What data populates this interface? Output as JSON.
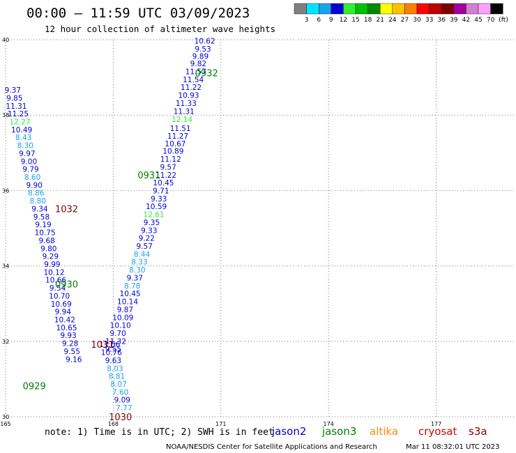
{
  "header": {
    "title": "00:00 – 11:59 UTC 03/09/2023",
    "subtitle": "12 hour collection of altimeter wave heights"
  },
  "footer": {
    "note": "note: 1) Time is in UTC; 2) SWH is in feet",
    "credit": "NOAA/NESDIS Center for Satellite Applications and Research",
    "timestamp": "Mar 11 08:32:01 UTC 2023"
  },
  "colorbar": {
    "unit": "(ft)",
    "bins": [
      {
        "label": "3",
        "color": "#808080"
      },
      {
        "label": "6",
        "color": "#00e5ff"
      },
      {
        "label": "9",
        "color": "#1aa3e8"
      },
      {
        "label": "12",
        "color": "#0000d8"
      },
      {
        "label": "15",
        "color": "#33ee33"
      },
      {
        "label": "18",
        "color": "#00c000"
      },
      {
        "label": "21",
        "color": "#008800"
      },
      {
        "label": "24",
        "color": "#ffff00"
      },
      {
        "label": "27",
        "color": "#ffc000"
      },
      {
        "label": "30",
        "color": "#ff8000"
      },
      {
        "label": "33",
        "color": "#ff0000"
      },
      {
        "label": "36",
        "color": "#c00000"
      },
      {
        "label": "39",
        "color": "#800000"
      },
      {
        "label": "42",
        "color": "#a000a0"
      },
      {
        "label": "45",
        "color": "#d080d0"
      },
      {
        "label": "70",
        "color": "#ffa0ff"
      },
      {
        "label": "",
        "color": "#000000"
      }
    ]
  },
  "legend": {
    "items": [
      {
        "label": "jason2",
        "color": "#0000cc"
      },
      {
        "label": "jason3",
        "color": "#008000"
      },
      {
        "label": "altika",
        "color": "#ff8800"
      },
      {
        "label": "cryosat",
        "color": "#dd0000"
      },
      {
        "label": "s3a",
        "color": "#800000"
      }
    ]
  },
  "chart_data": {
    "type": "scatter",
    "xlim": [
      165,
      180
    ],
    "ylim": [
      30,
      40
    ],
    "x_ticks": [
      "165",
      "168",
      "171",
      "174",
      "177"
    ],
    "y_ticks": [
      "30",
      "32",
      "34",
      "36",
      "38",
      "40"
    ],
    "grid": true,
    "value_colors": {
      "low": "#1aa3e8",
      "mid": "#0000d8",
      "high": "#33ee33"
    },
    "time_color": "#008000",
    "time_color_alt": "#800000",
    "track_labels": [
      {
        "text": "0932",
        "x": 170.6,
        "y": 39.1,
        "alt": false
      },
      {
        "text": "0931",
        "x": 169.0,
        "y": 36.4,
        "alt": false
      },
      {
        "text": "0930",
        "x": 166.7,
        "y": 33.5,
        "alt": false
      },
      {
        "text": "0929",
        "x": 165.8,
        "y": 30.8,
        "alt": false
      },
      {
        "text": "1032",
        "x": 166.7,
        "y": 35.5,
        "alt": true
      },
      {
        "text": "1031",
        "x": 167.7,
        "y": 31.9,
        "alt": true
      },
      {
        "text": "1030",
        "x": 168.2,
        "y": 29.98,
        "alt": true
      }
    ],
    "tracks": [
      {
        "name": "pass 0932-0931",
        "points": [
          {
            "x": 170.55,
            "y": 39.95,
            "v": 10.62
          },
          {
            "x": 170.5,
            "y": 39.74,
            "v": 9.53
          },
          {
            "x": 170.43,
            "y": 39.55,
            "v": 9.89
          },
          {
            "x": 170.37,
            "y": 39.35,
            "v": 9.82
          },
          {
            "x": 170.3,
            "y": 39.14,
            "v": 11.57
          },
          {
            "x": 170.23,
            "y": 38.93,
            "v": 11.54
          },
          {
            "x": 170.17,
            "y": 38.72,
            "v": 11.22
          },
          {
            "x": 170.1,
            "y": 38.51,
            "v": 10.93
          },
          {
            "x": 170.03,
            "y": 38.3,
            "v": 11.33
          },
          {
            "x": 169.97,
            "y": 38.09,
            "v": 11.31
          },
          {
            "x": 169.92,
            "y": 37.87,
            "v": 12.14
          },
          {
            "x": 169.87,
            "y": 37.63,
            "v": 11.51
          },
          {
            "x": 169.8,
            "y": 37.43,
            "v": 11.27
          },
          {
            "x": 169.73,
            "y": 37.23,
            "v": 10.67
          },
          {
            "x": 169.67,
            "y": 37.03,
            "v": 10.89
          },
          {
            "x": 169.6,
            "y": 36.82,
            "v": 11.12
          },
          {
            "x": 169.53,
            "y": 36.61,
            "v": 9.57
          },
          {
            "x": 169.47,
            "y": 36.4,
            "v": 11.22
          },
          {
            "x": 169.4,
            "y": 36.19,
            "v": 10.45
          },
          {
            "x": 169.33,
            "y": 35.98,
            "v": 9.71
          },
          {
            "x": 169.27,
            "y": 35.77,
            "v": 9.33
          },
          {
            "x": 169.2,
            "y": 35.56,
            "v": 10.59
          },
          {
            "x": 169.13,
            "y": 35.35,
            "v": 12.61
          },
          {
            "x": 169.07,
            "y": 35.14,
            "v": 9.35
          },
          {
            "x": 169.0,
            "y": 34.93,
            "v": 9.33
          },
          {
            "x": 168.93,
            "y": 34.72,
            "v": 9.22
          },
          {
            "x": 168.87,
            "y": 34.51,
            "v": 9.57
          },
          {
            "x": 168.8,
            "y": 34.3,
            "v": 8.44
          },
          {
            "x": 168.73,
            "y": 34.09,
            "v": 8.33
          },
          {
            "x": 168.67,
            "y": 33.88,
            "v": 8.3
          },
          {
            "x": 168.6,
            "y": 33.67,
            "v": 9.37
          },
          {
            "x": 168.53,
            "y": 33.46,
            "v": 8.78
          },
          {
            "x": 168.47,
            "y": 33.25,
            "v": 10.45
          },
          {
            "x": 168.4,
            "y": 33.04,
            "v": 10.14
          },
          {
            "x": 168.33,
            "y": 32.83,
            "v": 9.87
          },
          {
            "x": 168.27,
            "y": 32.62,
            "v": 10.09
          },
          {
            "x": 168.2,
            "y": 32.41,
            "v": 10.1
          },
          {
            "x": 168.13,
            "y": 32.2,
            "v": 9.7
          },
          {
            "x": 168.07,
            "y": 31.99,
            "v": 11.32
          },
          {
            "x": 168.0,
            "y": 31.78,
            "v": 9.55
          }
        ]
      },
      {
        "name": "pass 1032-1030",
        "points": [
          {
            "x": 165.2,
            "y": 38.65,
            "v": 9.37
          },
          {
            "x": 165.25,
            "y": 38.44,
            "v": 9.85
          },
          {
            "x": 165.3,
            "y": 38.23,
            "v": 11.31
          },
          {
            "x": 165.35,
            "y": 38.02,
            "v": 11.25
          },
          {
            "x": 165.4,
            "y": 37.81,
            "v": 12.27
          },
          {
            "x": 165.45,
            "y": 37.6,
            "v": 10.49
          },
          {
            "x": 165.5,
            "y": 37.39,
            "v": 8.43
          },
          {
            "x": 165.55,
            "y": 37.18,
            "v": 8.3
          },
          {
            "x": 165.6,
            "y": 36.97,
            "v": 9.97
          },
          {
            "x": 165.65,
            "y": 36.76,
            "v": 9.0
          },
          {
            "x": 165.7,
            "y": 36.55,
            "v": 9.79
          },
          {
            "x": 165.75,
            "y": 36.34,
            "v": 8.6
          },
          {
            "x": 165.8,
            "y": 36.13,
            "v": 9.9
          },
          {
            "x": 165.85,
            "y": 35.92,
            "v": 8.86
          },
          {
            "x": 165.9,
            "y": 35.71,
            "v": 8.8
          },
          {
            "x": 165.95,
            "y": 35.5,
            "v": 9.34
          },
          {
            "x": 166.0,
            "y": 35.29,
            "v": 9.58
          },
          {
            "x": 166.05,
            "y": 35.08,
            "v": 9.19
          },
          {
            "x": 166.1,
            "y": 34.87,
            "v": 10.75
          },
          {
            "x": 166.15,
            "y": 34.66,
            "v": 9.68
          },
          {
            "x": 166.2,
            "y": 34.45,
            "v": 9.8
          },
          {
            "x": 166.25,
            "y": 34.24,
            "v": 9.29
          },
          {
            "x": 166.3,
            "y": 34.03,
            "v": 9.99
          },
          {
            "x": 166.35,
            "y": 33.82,
            "v": 10.12
          },
          {
            "x": 166.4,
            "y": 33.61,
            "v": 10.66
          },
          {
            "x": 166.45,
            "y": 33.4,
            "v": 9.54
          },
          {
            "x": 166.5,
            "y": 33.19,
            "v": 10.7
          },
          {
            "x": 166.55,
            "y": 32.98,
            "v": 10.69
          },
          {
            "x": 166.6,
            "y": 32.77,
            "v": 9.94
          },
          {
            "x": 166.65,
            "y": 32.56,
            "v": 10.42
          },
          {
            "x": 166.7,
            "y": 32.35,
            "v": 10.65
          },
          {
            "x": 166.75,
            "y": 32.14,
            "v": 9.93
          },
          {
            "x": 166.8,
            "y": 31.93,
            "v": 9.28
          },
          {
            "x": 166.85,
            "y": 31.72,
            "v": 9.55
          },
          {
            "x": 166.9,
            "y": 31.51,
            "v": 9.16
          }
        ]
      },
      {
        "name": "pass 1031-1030",
        "points": [
          {
            "x": 167.9,
            "y": 31.9,
            "v": 11.06
          },
          {
            "x": 167.95,
            "y": 31.69,
            "v": 10.76
          },
          {
            "x": 168.0,
            "y": 31.48,
            "v": 9.63
          },
          {
            "x": 168.05,
            "y": 31.27,
            "v": 8.03
          },
          {
            "x": 168.1,
            "y": 31.06,
            "v": 8.81
          },
          {
            "x": 168.15,
            "y": 30.85,
            "v": 8.07
          },
          {
            "x": 168.2,
            "y": 30.64,
            "v": 7.6
          },
          {
            "x": 168.25,
            "y": 30.43,
            "v": 9.09
          },
          {
            "x": 168.3,
            "y": 30.22,
            "v": 7.77
          }
        ]
      }
    ]
  }
}
